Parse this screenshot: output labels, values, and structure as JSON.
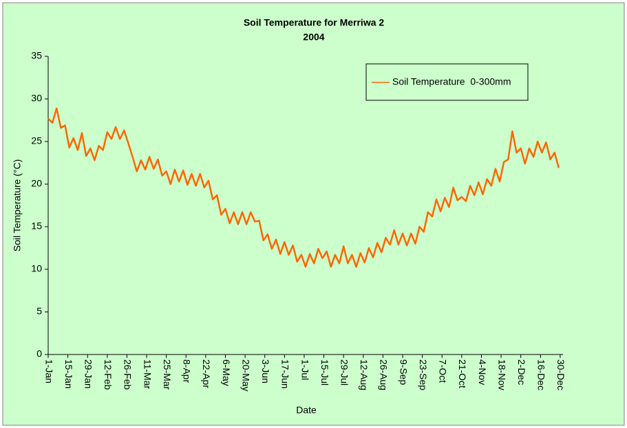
{
  "chart_data": {
    "type": "line",
    "title": "Soil Temperature for Merriwa 2",
    "subtitle": "2004",
    "x_label": "Date",
    "y_label": "Soil Temperature (°C)",
    "xlim": [
      0,
      366
    ],
    "xticks": [
      {
        "value": 0,
        "label": "1-Jan"
      },
      {
        "value": 14,
        "label": "15-Jan"
      },
      {
        "value": 28,
        "label": "29-Jan"
      },
      {
        "value": 42,
        "label": "12-Feb"
      },
      {
        "value": 56,
        "label": "26-Feb"
      },
      {
        "value": 70,
        "label": "11-Mar"
      },
      {
        "value": 84,
        "label": "25-Mar"
      },
      {
        "value": 98,
        "label": "8-Apr"
      },
      {
        "value": 112,
        "label": "22-Apr"
      },
      {
        "value": 126,
        "label": "6-May"
      },
      {
        "value": 140,
        "label": "20-May"
      },
      {
        "value": 154,
        "label": "3-Jun"
      },
      {
        "value": 168,
        "label": "17-Jun"
      },
      {
        "value": 182,
        "label": "1-Jul"
      },
      {
        "value": 196,
        "label": "15-Jul"
      },
      {
        "value": 210,
        "label": "29-Jul"
      },
      {
        "value": 224,
        "label": "12-Aug"
      },
      {
        "value": 238,
        "label": "26-Aug"
      },
      {
        "value": 252,
        "label": "9-Sep"
      },
      {
        "value": 266,
        "label": "23-Sep"
      },
      {
        "value": 280,
        "label": "7-Oct"
      },
      {
        "value": 294,
        "label": "21-Oct"
      },
      {
        "value": 308,
        "label": "4-Nov"
      },
      {
        "value": 322,
        "label": "18-Nov"
      },
      {
        "value": 336,
        "label": "2-Dec"
      },
      {
        "value": 350,
        "label": "16-Dec"
      },
      {
        "value": 364,
        "label": "30-Dec"
      }
    ],
    "ylim": [
      0,
      35
    ],
    "yticks": [
      0,
      5,
      10,
      15,
      20,
      25,
      30,
      35
    ],
    "grid": false,
    "legend": "upper right",
    "x": [
      0,
      3,
      6,
      9,
      12,
      15,
      18,
      21,
      24,
      27,
      30,
      33,
      36,
      39,
      42,
      45,
      48,
      51,
      54,
      57,
      60,
      63,
      66,
      69,
      72,
      75,
      78,
      81,
      84,
      87,
      90,
      93,
      96,
      99,
      102,
      105,
      108,
      111,
      114,
      117,
      120,
      123,
      126,
      129,
      132,
      135,
      138,
      141,
      144,
      147,
      150,
      153,
      156,
      159,
      162,
      165,
      168,
      171,
      174,
      177,
      180,
      183,
      186,
      189,
      192,
      195,
      198,
      201,
      204,
      207,
      210,
      213,
      216,
      219,
      222,
      225,
      228,
      231,
      234,
      237,
      240,
      243,
      246,
      249,
      252,
      255,
      258,
      261,
      264,
      267,
      270,
      273,
      276,
      279,
      282,
      285,
      288,
      291,
      294,
      297,
      300,
      303,
      306,
      309,
      312,
      315,
      318,
      321,
      324,
      327,
      330,
      333,
      336,
      339,
      342,
      345,
      348,
      351,
      354,
      357,
      360,
      363
    ],
    "series": [
      {
        "name": "Soil Temperature  0-300mm",
        "color": "#ff6600",
        "values": [
          27.7,
          27.2,
          28.9,
          26.6,
          26.9,
          24.3,
          25.4,
          24.0,
          26.0,
          23.3,
          24.2,
          22.8,
          24.5,
          24.0,
          26.1,
          25.3,
          26.7,
          25.3,
          26.3,
          24.8,
          23.2,
          21.5,
          22.8,
          21.7,
          23.2,
          21.8,
          22.9,
          21.0,
          21.5,
          20.0,
          21.7,
          20.3,
          21.6,
          19.9,
          21.2,
          19.8,
          21.2,
          19.6,
          20.4,
          18.2,
          18.7,
          16.4,
          17.1,
          15.4,
          16.7,
          15.3,
          16.7,
          15.3,
          16.7,
          15.6,
          15.7,
          13.4,
          14.1,
          12.4,
          13.5,
          11.8,
          13.2,
          11.7,
          12.8,
          10.9,
          11.7,
          10.3,
          11.8,
          10.7,
          12.4,
          11.3,
          12.1,
          10.3,
          11.7,
          10.7,
          12.7,
          10.7,
          11.7,
          10.3,
          11.9,
          10.8,
          12.5,
          11.4,
          13.1,
          12.0,
          13.7,
          12.9,
          14.6,
          12.9,
          14.2,
          12.8,
          14.2,
          13.0,
          15.0,
          14.4,
          16.7,
          16.2,
          18.2,
          16.8,
          18.4,
          17.3,
          19.6,
          18.1,
          18.5,
          18.0,
          19.8,
          18.7,
          20.2,
          18.8,
          20.6,
          19.8,
          21.8,
          20.3,
          22.6,
          22.9,
          26.2,
          23.7,
          24.2,
          22.4,
          24.2,
          23.2,
          25.0,
          23.7,
          24.9,
          22.9,
          23.7,
          21.9
        ]
      }
    ]
  }
}
